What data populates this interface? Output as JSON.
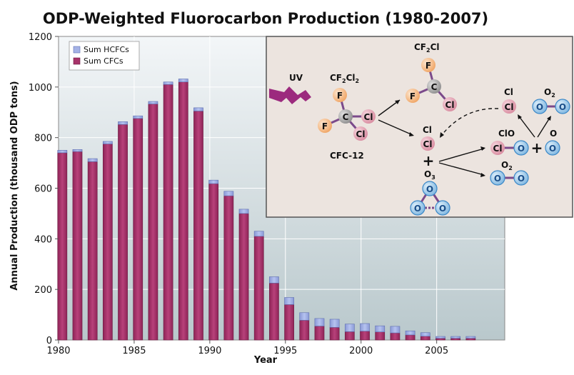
{
  "chart_data": {
    "type": "bar",
    "title": "ODP-Weighted Fluorocarbon Production (1980-2007)",
    "xlabel": "Year",
    "ylabel": "Annual Production (thousand ODP tons)",
    "ylim": [
      0,
      1200
    ],
    "y_ticks": [
      "0",
      "200",
      "400",
      "600",
      "800",
      "1000",
      "1200"
    ],
    "x_ticks": [
      "1980",
      "1985",
      "1990",
      "1995",
      "2000",
      "2005"
    ],
    "grid": true,
    "stacked": true,
    "legend": "top-left",
    "categories": [
      1980,
      1981,
      1982,
      1983,
      1984,
      1985,
      1986,
      1987,
      1988,
      1989,
      1990,
      1991,
      1992,
      1993,
      1994,
      1995,
      1996,
      1997,
      1998,
      1999,
      2000,
      2001,
      2002,
      2003,
      2004,
      2005,
      2006,
      2007
    ],
    "series": [
      {
        "name": "Sum CFCs",
        "color": "#a8336a",
        "values": [
          740,
          745,
          705,
          775,
          852,
          876,
          933,
          1010,
          1020,
          905,
          618,
          570,
          500,
          410,
          225,
          140,
          78,
          55,
          50,
          33,
          35,
          32,
          28,
          20,
          15,
          7,
          7,
          7
        ]
      },
      {
        "name": "Sum HCFCs",
        "color": "#a4b2e6",
        "values": [
          10,
          8,
          12,
          10,
          11,
          10,
          10,
          10,
          12,
          13,
          14,
          18,
          17,
          20,
          25,
          28,
          30,
          30,
          32,
          30,
          30,
          24,
          26,
          16,
          14,
          7,
          7,
          7
        ]
      }
    ]
  },
  "inset": {
    "uv_label": "UV",
    "cfc_formula_main": "CF",
    "cfc_formula_sub1": "2",
    "cfc_formula_mid": "Cl",
    "cfc_formula_sub2": "2",
    "cfc_name": "CFC-12",
    "cf2cl_main": "CF",
    "cf2cl_sub": "2",
    "cf2cl_end": "Cl",
    "cl_label": "Cl",
    "cl_label2": "Cl",
    "o2_label_top": "O",
    "o2_sub_top": "2",
    "clo_label": "ClO",
    "o_label": "O",
    "o3_label": "O",
    "o3_sub": "3",
    "o2_label_bottom": "O",
    "o2_sub_bottom": "2",
    "plus_left": "+",
    "plus_right": "+",
    "atoms": {
      "F": "F",
      "C": "C",
      "Cl": "Cl",
      "O": "O"
    }
  }
}
